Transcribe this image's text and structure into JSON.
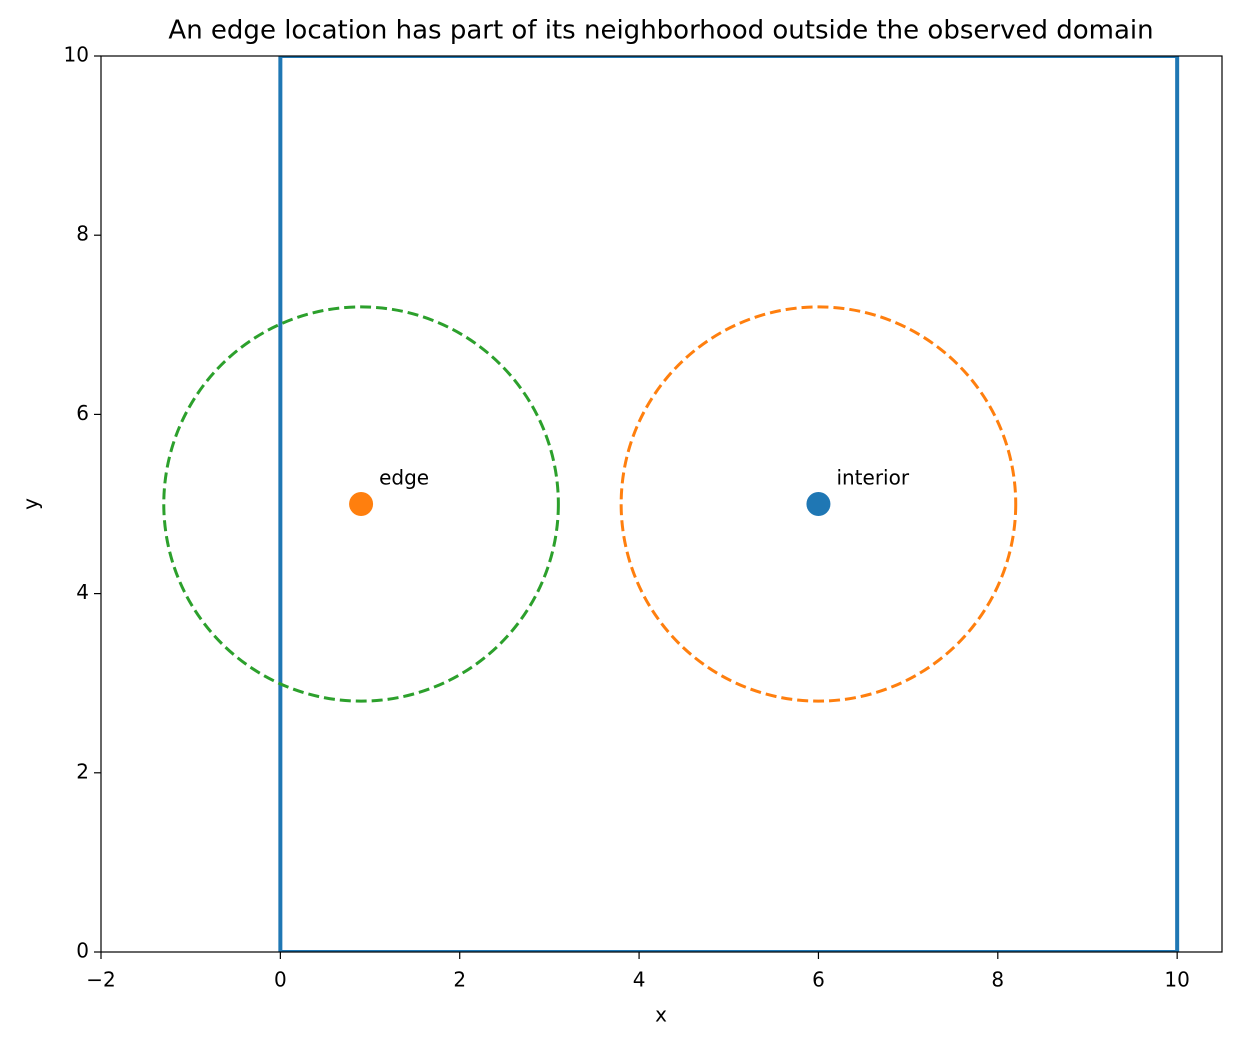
{
  "chart_data": {
    "type": "scatter",
    "title": "An edge location has part of its neighborhood outside the observed domain",
    "xlabel": "x",
    "ylabel": "y",
    "xlim": [
      -2,
      10.5
    ],
    "ylim": [
      0,
      10
    ],
    "xticks": [
      {
        "value": -2,
        "label": "−2"
      },
      0,
      2,
      4,
      6,
      8,
      10
    ],
    "yticks": [
      0,
      2,
      4,
      6,
      8,
      10
    ],
    "domain": {
      "x": [
        0,
        10,
        10,
        0,
        0
      ],
      "y": [
        0,
        0,
        10,
        10,
        0
      ],
      "color": "#1f77b4"
    },
    "points": [
      {
        "name": "interior",
        "x": 6,
        "y": 5,
        "color": "#1f77b4"
      },
      {
        "name": "edge",
        "x": 0.9,
        "y": 5,
        "color": "#ff7f0e"
      }
    ],
    "neighborhoods": [
      {
        "x": 0.9,
        "y": 5,
        "radius": 2.2,
        "color": "#2ca02c"
      },
      {
        "x": 6,
        "y": 5,
        "radius": 2.2,
        "color": "#ff7f0e"
      }
    ]
  }
}
